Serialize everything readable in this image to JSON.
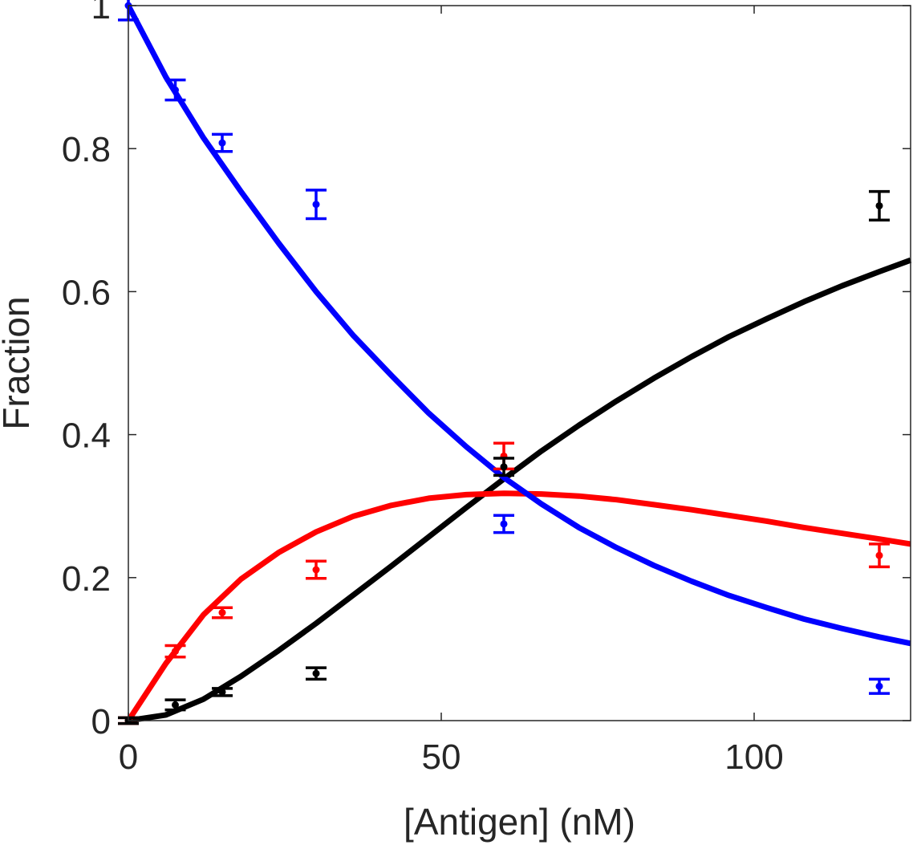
{
  "chart_data": {
    "type": "line",
    "title": "",
    "xlabel": "[Antigen] (nM)",
    "ylabel": "Fraction",
    "xlim": [
      0,
      125
    ],
    "ylim": [
      0,
      1.0
    ],
    "xticks": [
      0,
      50,
      100
    ],
    "xtick_labels": [
      "0",
      "50",
      "100"
    ],
    "yticks": [
      0,
      0.2,
      0.4,
      0.6,
      0.8,
      1.0
    ],
    "ytick_labels": [
      "0",
      "0.2",
      "0.4",
      "0.6",
      "0.8",
      "1"
    ],
    "grid": false,
    "series": [
      {
        "name": "blue",
        "color": "#0000ff",
        "fit": {
          "x": [
            0,
            6,
            12,
            18,
            24,
            30,
            36,
            42,
            48,
            54,
            60,
            66,
            72,
            78,
            84,
            90,
            96,
            102,
            108,
            114,
            120,
            125
          ],
          "y": [
            1.0,
            0.9,
            0.815,
            0.74,
            0.668,
            0.6,
            0.538,
            0.483,
            0.43,
            0.383,
            0.34,
            0.303,
            0.27,
            0.242,
            0.217,
            0.195,
            0.175,
            0.158,
            0.142,
            0.129,
            0.117,
            0.108
          ]
        },
        "points": [
          {
            "x": 0,
            "y": 1.0,
            "err": 0.02
          },
          {
            "x": 7.5,
            "y": 0.882,
            "err": 0.014
          },
          {
            "x": 15,
            "y": 0.808,
            "err": 0.012
          },
          {
            "x": 30,
            "y": 0.722,
            "err": 0.02
          },
          {
            "x": 60,
            "y": 0.275,
            "err": 0.012
          },
          {
            "x": 120,
            "y": 0.048,
            "err": 0.01
          }
        ]
      },
      {
        "name": "red",
        "color": "#ff0000",
        "fit": {
          "x": [
            0,
            6,
            12,
            18,
            24,
            30,
            36,
            42,
            48,
            54,
            60,
            66,
            72,
            78,
            84,
            90,
            96,
            102,
            108,
            114,
            120,
            125
          ],
          "y": [
            0,
            0.08,
            0.148,
            0.198,
            0.235,
            0.264,
            0.286,
            0.301,
            0.311,
            0.316,
            0.318,
            0.317,
            0.314,
            0.309,
            0.302,
            0.295,
            0.287,
            0.279,
            0.27,
            0.262,
            0.254,
            0.247
          ]
        },
        "points": [
          {
            "x": 0,
            "y": 0,
            "err": 0.004
          },
          {
            "x": 7.5,
            "y": 0.097,
            "err": 0.008
          },
          {
            "x": 15,
            "y": 0.151,
            "err": 0.007
          },
          {
            "x": 30,
            "y": 0.211,
            "err": 0.012
          },
          {
            "x": 60,
            "y": 0.37,
            "err": 0.018
          },
          {
            "x": 120,
            "y": 0.231,
            "err": 0.016
          }
        ]
      },
      {
        "name": "black",
        "color": "#000000",
        "fit": {
          "x": [
            0,
            6,
            12,
            18,
            24,
            30,
            36,
            42,
            48,
            54,
            60,
            66,
            72,
            78,
            84,
            90,
            96,
            102,
            108,
            114,
            120,
            125
          ],
          "y": [
            0,
            0.008,
            0.03,
            0.062,
            0.098,
            0.136,
            0.176,
            0.216,
            0.257,
            0.298,
            0.338,
            0.377,
            0.413,
            0.447,
            0.479,
            0.509,
            0.537,
            0.562,
            0.586,
            0.608,
            0.628,
            0.644
          ]
        },
        "points": [
          {
            "x": 0,
            "y": 0,
            "err": 0.004
          },
          {
            "x": 7.5,
            "y": 0.022,
            "err": 0.007
          },
          {
            "x": 15,
            "y": 0.04,
            "err": 0.005
          },
          {
            "x": 30,
            "y": 0.066,
            "err": 0.008
          },
          {
            "x": 60,
            "y": 0.355,
            "err": 0.012
          },
          {
            "x": 120,
            "y": 0.72,
            "err": 0.02
          }
        ]
      }
    ]
  }
}
